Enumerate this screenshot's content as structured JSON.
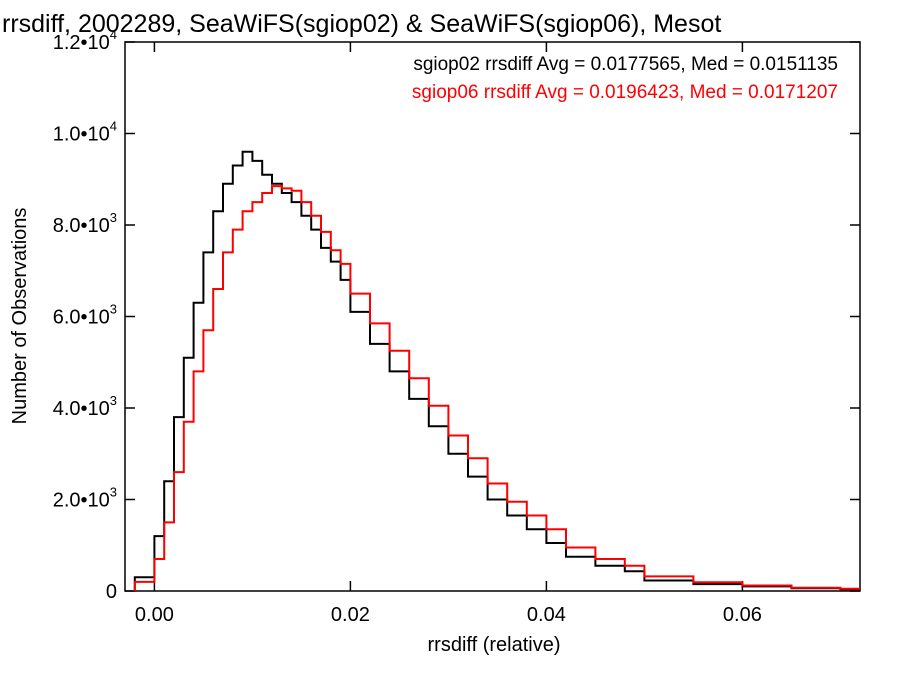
{
  "chart_data": {
    "type": "line",
    "title": "rrsdiff, 2002289, SeaWiFS(sgiop02) & SeaWiFS(sgiop06), Mesot",
    "xlabel": "rrsdiff (relative)",
    "ylabel": "Number of Observations",
    "xlim": [
      -0.003,
      0.072
    ],
    "ylim": [
      0,
      12000
    ],
    "x_ticks": [
      {
        "value": 0.0,
        "label": "0.00"
      },
      {
        "value": 0.02,
        "label": "0.02"
      },
      {
        "value": 0.04,
        "label": "0.04"
      },
      {
        "value": 0.06,
        "label": "0.06"
      }
    ],
    "y_ticks": [
      {
        "value": 0,
        "label": "0",
        "mant": "0",
        "exp": ""
      },
      {
        "value": 2000,
        "label": "2.0•10^3",
        "mant": "2.0•10",
        "exp": "3"
      },
      {
        "value": 4000,
        "label": "4.0•10^3",
        "mant": "4.0•10",
        "exp": "3"
      },
      {
        "value": 6000,
        "label": "6.0•10^3",
        "mant": "6.0•10",
        "exp": "3"
      },
      {
        "value": 8000,
        "label": "8.0•10^3",
        "mant": "8.0•10",
        "exp": "3"
      },
      {
        "value": 10000,
        "label": "1.0•10^4",
        "mant": "1.0•10",
        "exp": "4"
      },
      {
        "value": 12000,
        "label": "1.2•10^4",
        "mant": "1.2•10",
        "exp": "4"
      }
    ],
    "grid": false,
    "legend_position": "top-right",
    "series": [
      {
        "name": "sgiop02 rrsdiff Avg = 0.0177565, Med = 0.0151135",
        "color": "#000000",
        "style": "step",
        "x": [
          -0.002,
          0.0,
          0.001,
          0.002,
          0.003,
          0.004,
          0.005,
          0.006,
          0.007,
          0.008,
          0.009,
          0.01,
          0.011,
          0.012,
          0.013,
          0.014,
          0.015,
          0.016,
          0.017,
          0.018,
          0.019,
          0.02,
          0.022,
          0.024,
          0.026,
          0.028,
          0.03,
          0.032,
          0.034,
          0.036,
          0.038,
          0.04,
          0.042,
          0.045,
          0.048,
          0.05,
          0.055,
          0.06,
          0.065,
          0.07,
          0.072
        ],
        "y": [
          0,
          300,
          1200,
          2400,
          3800,
          5100,
          6300,
          7400,
          8300,
          8900,
          9300,
          9600,
          9400,
          9100,
          8900,
          8700,
          8500,
          8200,
          7900,
          7500,
          7200,
          6800,
          6100,
          5400,
          4800,
          4200,
          3600,
          3000,
          2500,
          2000,
          1650,
          1350,
          1050,
          750,
          550,
          430,
          230,
          150,
          100,
          60,
          40
        ]
      },
      {
        "name": "sgiop06 rrsdiff Avg = 0.0196423, Med = 0.0171207",
        "color": "#ff0000",
        "style": "step",
        "x": [
          -0.002,
          0.0,
          0.001,
          0.002,
          0.003,
          0.004,
          0.005,
          0.006,
          0.007,
          0.008,
          0.009,
          0.01,
          0.011,
          0.012,
          0.013,
          0.014,
          0.015,
          0.016,
          0.017,
          0.018,
          0.019,
          0.02,
          0.022,
          0.024,
          0.026,
          0.028,
          0.03,
          0.032,
          0.034,
          0.036,
          0.038,
          0.04,
          0.042,
          0.045,
          0.048,
          0.05,
          0.055,
          0.06,
          0.065,
          0.07,
          0.072
        ],
        "y": [
          0,
          200,
          700,
          1500,
          2600,
          3700,
          4800,
          5700,
          6600,
          7400,
          7900,
          8300,
          8500,
          8700,
          8850,
          8800,
          8750,
          8500,
          8200,
          7850,
          7450,
          7150,
          6500,
          5850,
          5250,
          4650,
          4050,
          3400,
          2900,
          2350,
          1950,
          1650,
          1350,
          950,
          700,
          550,
          320,
          190,
          120,
          70,
          50
        ]
      }
    ]
  }
}
